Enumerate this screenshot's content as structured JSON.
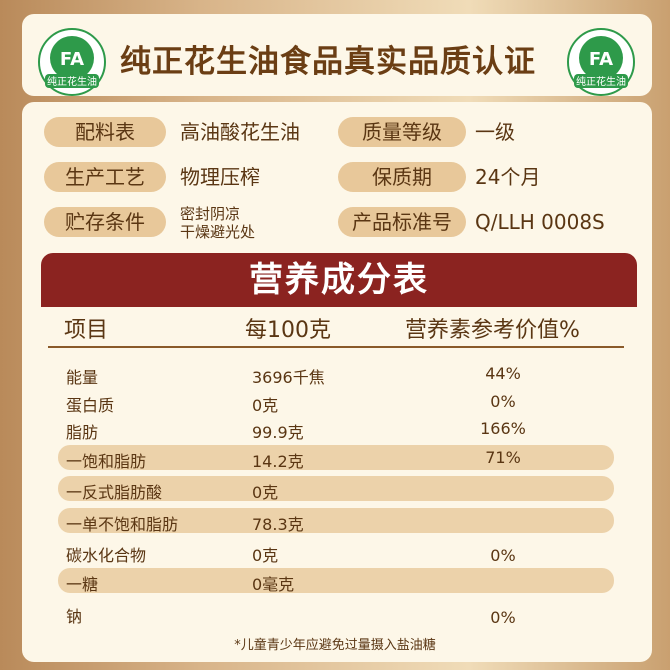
{
  "header": {
    "title": "纯正花生油食品真实品质认证",
    "logo_text": "纯正花生油",
    "logo_mark": "FA"
  },
  "info": [
    {
      "label": "配料表",
      "value": "高油酸花生油"
    },
    {
      "label": "质量等级",
      "value": "一级"
    },
    {
      "label": "生产工艺",
      "value": "物理压榨"
    },
    {
      "label": "保质期",
      "value": "24个月"
    },
    {
      "label": "贮存条件",
      "value_line1": "密封阴凉",
      "value_line2": "干燥避光处"
    },
    {
      "label": "产品标准号",
      "value": "Q/LLH 0008S"
    }
  ],
  "nutrition": {
    "title": "营养成分表",
    "headers": [
      "项目",
      "每100克",
      "营养素参考价值%"
    ],
    "rows": [
      {
        "item": "能量",
        "per100": "3696千焦",
        "nrv": "44%"
      },
      {
        "item": "蛋白质",
        "per100": "0克",
        "nrv": "0%"
      },
      {
        "item": "脂肪",
        "per100": "99.9克",
        "nrv": "166%"
      },
      {
        "item": "一饱和脂肪",
        "per100": "14.2克",
        "nrv": "71%"
      },
      {
        "item": "一反式脂肪酸",
        "per100": "0克",
        "nrv": ""
      },
      {
        "item": "一单不饱和脂肪",
        "per100": "78.3克",
        "nrv": ""
      },
      {
        "item": "碳水化合物",
        "per100": "0克",
        "nrv": "0%"
      },
      {
        "item": "一糖",
        "per100": "0毫克",
        "nrv": ""
      },
      {
        "item": "钠",
        "per100": "",
        "nrv": "0%"
      }
    ],
    "footnote": "*儿童青少年应避免过量摄入盐油糖"
  },
  "colors": {
    "accent_red": "#8b2320",
    "pill": "#e8c89a",
    "text": "#5a3613",
    "logo_green": "#2e9a4a"
  }
}
